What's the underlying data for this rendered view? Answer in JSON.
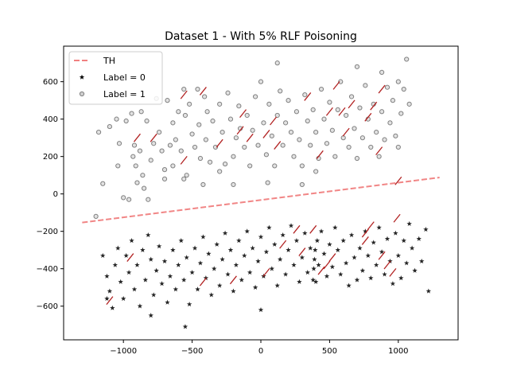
{
  "chart_data": {
    "type": "scatter",
    "title": "Dataset 1 - With 5% RLF Poisoning",
    "xlabel": "",
    "ylabel": "",
    "xlim": [
      -1435,
      1435
    ],
    "ylim": [
      -780,
      790
    ],
    "xticks": [
      -1000,
      -500,
      0,
      500,
      1000
    ],
    "yticks": [
      -600,
      -400,
      -200,
      0,
      200,
      400,
      600
    ],
    "legend_position": "upper-left",
    "legend": [
      {
        "label": "TH",
        "style": "dashed-line",
        "color": "#f08080"
      },
      {
        "label": "Label = 0",
        "style": "star",
        "color": "#000000"
      },
      {
        "label": "Label = 1",
        "style": "circle",
        "color": "#808080"
      }
    ],
    "threshold_line": {
      "name": "TH",
      "x": [
        -1300,
        1300
      ],
      "y": [
        -153,
        88
      ],
      "color": "#f08080"
    },
    "series": [
      {
        "name": "Label = 1",
        "marker": "circle",
        "color": "#808080",
        "points": [
          [
            -1180,
            330
          ],
          [
            -1150,
            55
          ],
          [
            -1100,
            360
          ],
          [
            -1050,
            400
          ],
          [
            -1030,
            270
          ],
          [
            -1000,
            -20
          ],
          [
            -980,
            390
          ],
          [
            -960,
            -30
          ],
          [
            -940,
            430
          ],
          [
            -930,
            200
          ],
          [
            -910,
            150
          ],
          [
            -900,
            60
          ],
          [
            -880,
            230
          ],
          [
            -870,
            440
          ],
          [
            -860,
            100
          ],
          [
            -850,
            30
          ],
          [
            -830,
            390
          ],
          [
            -820,
            -30
          ],
          [
            -800,
            180
          ],
          [
            -780,
            270
          ],
          [
            -760,
            510
          ],
          [
            -740,
            330
          ],
          [
            -720,
            230
          ],
          [
            -700,
            130
          ],
          [
            -680,
            500
          ],
          [
            -660,
            260
          ],
          [
            -640,
            150
          ],
          [
            -620,
            290
          ],
          [
            -600,
            440
          ],
          [
            -580,
            230
          ],
          [
            -560,
            560
          ],
          [
            -550,
            420
          ],
          [
            -540,
            100
          ],
          [
            -520,
            480
          ],
          [
            -500,
            320
          ],
          [
            -480,
            250
          ],
          [
            -460,
            560
          ],
          [
            -450,
            370
          ],
          [
            -440,
            190
          ],
          [
            -420,
            50
          ],
          [
            -410,
            520
          ],
          [
            -400,
            290
          ],
          [
            -390,
            440
          ],
          [
            -370,
            170
          ],
          [
            -350,
            390
          ],
          [
            -330,
            250
          ],
          [
            -300,
            480
          ],
          [
            -280,
            330
          ],
          [
            -260,
            160
          ],
          [
            -240,
            540
          ],
          [
            -220,
            400
          ],
          [
            -200,
            200
          ],
          [
            -180,
            300
          ],
          [
            -160,
            470
          ],
          [
            -150,
            350
          ],
          [
            -120,
            250
          ],
          [
            -100,
            420
          ],
          [
            -80,
            150
          ],
          [
            -60,
            340
          ],
          [
            -40,
            520
          ],
          [
            -20,
            260
          ],
          [
            0,
            600
          ],
          [
            20,
            380
          ],
          [
            40,
            210
          ],
          [
            60,
            480
          ],
          [
            80,
            310
          ],
          [
            100,
            150
          ],
          [
            120,
            420
          ],
          [
            140,
            550
          ],
          [
            160,
            260
          ],
          [
            180,
            380
          ],
          [
            200,
            500
          ],
          [
            220,
            330
          ],
          [
            240,
            200
          ],
          [
            260,
            440
          ],
          [
            280,
            290
          ],
          [
            300,
            150
          ],
          [
            320,
            530
          ],
          [
            340,
            390
          ],
          [
            360,
            260
          ],
          [
            380,
            450
          ],
          [
            400,
            330
          ],
          [
            420,
            190
          ],
          [
            440,
            560
          ],
          [
            460,
            400
          ],
          [
            480,
            270
          ],
          [
            500,
            490
          ],
          [
            520,
            340
          ],
          [
            540,
            200
          ],
          [
            560,
            450
          ],
          [
            580,
            600
          ],
          [
            600,
            300
          ],
          [
            620,
            420
          ],
          [
            640,
            250
          ],
          [
            660,
            520
          ],
          [
            680,
            350
          ],
          [
            700,
            190
          ],
          [
            720,
            460
          ],
          [
            740,
            300
          ],
          [
            760,
            580
          ],
          [
            780,
            400
          ],
          [
            800,
            250
          ],
          [
            820,
            480
          ],
          [
            840,
            330
          ],
          [
            860,
            200
          ],
          [
            880,
            440
          ],
          [
            900,
            290
          ],
          [
            920,
            570
          ],
          [
            940,
            380
          ],
          [
            960,
            500
          ],
          [
            980,
            310
          ],
          [
            1000,
            600
          ],
          [
            1020,
            430
          ],
          [
            1040,
            560
          ],
          [
            1060,
            720
          ],
          [
            1080,
            480
          ],
          [
            1000,
            250
          ],
          [
            -1040,
            150
          ],
          [
            -640,
            380
          ],
          [
            -300,
            120
          ],
          [
            120,
            700
          ],
          [
            880,
            650
          ],
          [
            -560,
            80
          ],
          [
            -920,
            260
          ],
          [
            300,
            50
          ],
          [
            700,
            680
          ],
          [
            50,
            60
          ],
          [
            -200,
            50
          ],
          [
            -1200,
            -120
          ],
          [
            -700,
            80
          ],
          [
            400,
            120
          ]
        ]
      },
      {
        "name": "Label = 0",
        "marker": "star",
        "color": "#000000",
        "points": [
          [
            -1150,
            -330
          ],
          [
            -1120,
            -440
          ],
          [
            -1100,
            -520
          ],
          [
            -1080,
            -610
          ],
          [
            -1060,
            -380
          ],
          [
            -1040,
            -290
          ],
          [
            -1020,
            -470
          ],
          [
            -1000,
            -560
          ],
          [
            -980,
            -330
          ],
          [
            -960,
            -420
          ],
          [
            -940,
            -250
          ],
          [
            -920,
            -510
          ],
          [
            -900,
            -380
          ],
          [
            -880,
            -600
          ],
          [
            -860,
            -300
          ],
          [
            -840,
            -460
          ],
          [
            -820,
            -220
          ],
          [
            -800,
            -350
          ],
          [
            -780,
            -540
          ],
          [
            -760,
            -410
          ],
          [
            -740,
            -280
          ],
          [
            -720,
            -480
          ],
          [
            -700,
            -360
          ],
          [
            -680,
            -580
          ],
          [
            -660,
            -440
          ],
          [
            -640,
            -300
          ],
          [
            -620,
            -510
          ],
          [
            -600,
            -380
          ],
          [
            -580,
            -250
          ],
          [
            -560,
            -460
          ],
          [
            -540,
            -340
          ],
          [
            -520,
            -590
          ],
          [
            -500,
            -420
          ],
          [
            -480,
            -290
          ],
          [
            -460,
            -510
          ],
          [
            -440,
            -370
          ],
          [
            -420,
            -230
          ],
          [
            -400,
            -450
          ],
          [
            -380,
            -320
          ],
          [
            -360,
            -540
          ],
          [
            -340,
            -400
          ],
          [
            -320,
            -270
          ],
          [
            -300,
            -490
          ],
          [
            -280,
            -350
          ],
          [
            -260,
            -210
          ],
          [
            -240,
            -430
          ],
          [
            -220,
            -300
          ],
          [
            -200,
            -520
          ],
          [
            -180,
            -380
          ],
          [
            -160,
            -250
          ],
          [
            -140,
            -460
          ],
          [
            -120,
            -330
          ],
          [
            -100,
            -200
          ],
          [
            -80,
            -420
          ],
          [
            -60,
            -290
          ],
          [
            -40,
            -500
          ],
          [
            -20,
            -360
          ],
          [
            0,
            -230
          ],
          [
            20,
            -440
          ],
          [
            40,
            -310
          ],
          [
            60,
            -180
          ],
          [
            80,
            -400
          ],
          [
            100,
            -270
          ],
          [
            120,
            -490
          ],
          [
            140,
            -350
          ],
          [
            160,
            -220
          ],
          [
            180,
            -430
          ],
          [
            200,
            -300
          ],
          [
            220,
            -170
          ],
          [
            240,
            -380
          ],
          [
            260,
            -250
          ],
          [
            280,
            -470
          ],
          [
            300,
            -340
          ],
          [
            320,
            -210
          ],
          [
            340,
            -420
          ],
          [
            360,
            -290
          ],
          [
            380,
            -460
          ],
          [
            385,
            -400
          ],
          [
            390,
            -350
          ],
          [
            395,
            -300
          ],
          [
            400,
            -470
          ],
          [
            410,
            -250
          ],
          [
            420,
            -380
          ],
          [
            440,
            -200
          ],
          [
            460,
            -320
          ],
          [
            480,
            -440
          ],
          [
            500,
            -270
          ],
          [
            520,
            -390
          ],
          [
            540,
            -180
          ],
          [
            560,
            -300
          ],
          [
            580,
            -430
          ],
          [
            600,
            -250
          ],
          [
            620,
            -370
          ],
          [
            640,
            -490
          ],
          [
            660,
            -220
          ],
          [
            680,
            -340
          ],
          [
            700,
            -460
          ],
          [
            720,
            -290
          ],
          [
            740,
            -410
          ],
          [
            760,
            -200
          ],
          [
            780,
            -330
          ],
          [
            800,
            -450
          ],
          [
            820,
            -260
          ],
          [
            840,
            -380
          ],
          [
            860,
            -180
          ],
          [
            880,
            -310
          ],
          [
            900,
            -430
          ],
          [
            920,
            -240
          ],
          [
            940,
            -360
          ],
          [
            960,
            -480
          ],
          [
            980,
            -210
          ],
          [
            1000,
            -330
          ],
          [
            1020,
            -450
          ],
          [
            1040,
            -250
          ],
          [
            1060,
            -370
          ],
          [
            1080,
            -160
          ],
          [
            1100,
            -290
          ],
          [
            1120,
            -410
          ],
          [
            1150,
            -240
          ],
          [
            1170,
            -360
          ],
          [
            1200,
            -190
          ],
          [
            1220,
            -520
          ],
          [
            -550,
            -710
          ],
          [
            -800,
            -650
          ],
          [
            0,
            -620
          ],
          [
            -1120,
            -560
          ]
        ]
      }
    ],
    "poisoned_marks": [
      [
        -1100,
        -570
      ],
      [
        -950,
        -340
      ],
      [
        -900,
        300
      ],
      [
        -780,
        300
      ],
      [
        -560,
        180
      ],
      [
        -560,
        530
      ],
      [
        -420,
        -470
      ],
      [
        -420,
        550
      ],
      [
        -200,
        -460
      ],
      [
        -150,
        340
      ],
      [
        -130,
        430
      ],
      [
        -80,
        300
      ],
      [
        40,
        -420
      ],
      [
        40,
        320
      ],
      [
        90,
        390
      ],
      [
        160,
        -270
      ],
      [
        260,
        -190
      ],
      [
        300,
        -310
      ],
      [
        380,
        -190
      ],
      [
        430,
        210
      ],
      [
        440,
        -410
      ],
      [
        480,
        -380
      ],
      [
        500,
        440
      ],
      [
        520,
        -340
      ],
      [
        550,
        580
      ],
      [
        590,
        440
      ],
      [
        620,
        330
      ],
      [
        660,
        480
      ],
      [
        760,
        -250
      ],
      [
        760,
        -210
      ],
      [
        780,
        410
      ],
      [
        800,
        -170
      ],
      [
        820,
        470
      ],
      [
        860,
        230
      ],
      [
        880,
        -330
      ],
      [
        880,
        560
      ],
      [
        920,
        -380
      ],
      [
        960,
        -420
      ],
      [
        990,
        -130
      ],
      [
        1000,
        70
      ],
      [
        -300,
        270
      ],
      [
        120,
        260
      ],
      [
        340,
        520
      ]
    ]
  }
}
